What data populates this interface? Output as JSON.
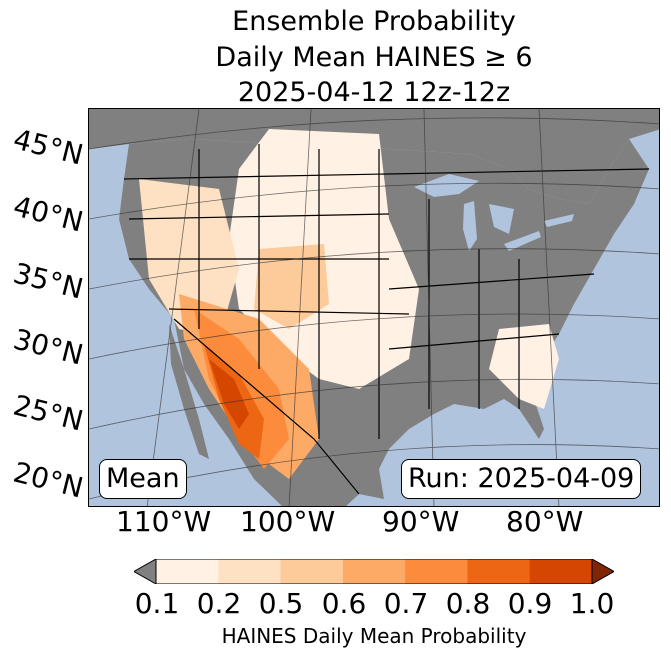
{
  "title": {
    "line1": "Ensemble Probability",
    "line2": "Daily Mean HAINES ≥ 6",
    "line3": "2025-04-12 12z-12z"
  },
  "map": {
    "latitude_labels": [
      "45°N",
      "40°N",
      "35°N",
      "30°N",
      "25°N",
      "20°N"
    ],
    "longitude_labels": [
      "110°W",
      "100°W",
      "90°W",
      "80°W"
    ],
    "mean_label": "Mean",
    "run_label": "Run: 2025-04-09",
    "colors": {
      "ocean": "#b0c4de",
      "no_data": "#808080",
      "borders": "#000000"
    }
  },
  "colorbar": {
    "label": "HAINES Daily Mean Probability",
    "ticks": [
      "0.1",
      "0.2",
      "0.5",
      "0.6",
      "0.7",
      "0.8",
      "0.9",
      "1.0"
    ],
    "colors": [
      "#fff1e3",
      "#fee0c3",
      "#fdca99",
      "#fdaa66",
      "#fc8c3b",
      "#ec6614",
      "#d54601"
    ],
    "under_color": "#808080",
    "over_color": "#7f2704"
  }
}
